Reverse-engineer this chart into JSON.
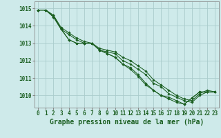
{
  "x": [
    0,
    1,
    2,
    3,
    4,
    5,
    6,
    7,
    8,
    9,
    10,
    11,
    12,
    13,
    14,
    15,
    16,
    17,
    18,
    19,
    20,
    21,
    22,
    23
  ],
  "lines": [
    [
      1014.9,
      1014.9,
      1014.6,
      1013.8,
      1013.5,
      1013.2,
      1013.0,
      1013.0,
      1012.6,
      1012.5,
      1012.4,
      1012.0,
      1011.8,
      1011.5,
      1011.2,
      1010.7,
      1010.5,
      1010.1,
      1009.9,
      1009.7,
      1009.6,
      1010.0,
      1010.2,
      1010.2
    ],
    [
      1014.9,
      1014.9,
      1014.6,
      1013.9,
      1013.6,
      1013.3,
      1013.1,
      1013.0,
      1012.7,
      1012.6,
      1012.5,
      1012.2,
      1012.0,
      1011.7,
      1011.4,
      1010.9,
      1010.6,
      1010.3,
      1010.0,
      1009.8,
      1009.7,
      1010.1,
      1010.3,
      1010.2
    ],
    [
      1014.9,
      1014.9,
      1014.5,
      1013.8,
      1013.2,
      1013.0,
      1013.0,
      1013.0,
      1012.6,
      1012.4,
      1012.2,
      1011.8,
      1011.5,
      1011.1,
      1010.6,
      1010.3,
      1010.0,
      1009.8,
      1009.6,
      1009.5,
      1009.85,
      1010.2,
      1010.2,
      1010.2
    ],
    [
      1014.9,
      1014.9,
      1014.5,
      1013.8,
      1013.2,
      1013.0,
      1013.0,
      1013.0,
      1012.6,
      1012.4,
      1012.2,
      1011.8,
      1011.6,
      1011.2,
      1010.7,
      1010.3,
      1010.0,
      1009.9,
      1009.7,
      1009.5,
      1009.85,
      1010.2,
      1010.2,
      1010.2
    ]
  ],
  "bg_color": "#ceeaea",
  "grid_color": "#aacccc",
  "line_color": "#1a5e20",
  "marker": "D",
  "marker_size": 1.8,
  "xlabel": "Graphe pression niveau de la mer (hPa)",
  "xlim": [
    -0.5,
    23.5
  ],
  "ylim": [
    1009.3,
    1015.4
  ],
  "yticks": [
    1010,
    1011,
    1012,
    1013,
    1014,
    1015
  ],
  "xticks": [
    0,
    1,
    2,
    3,
    4,
    5,
    6,
    7,
    8,
    9,
    10,
    11,
    12,
    13,
    14,
    15,
    16,
    17,
    18,
    19,
    20,
    21,
    22,
    23
  ],
  "tick_fontsize": 5.5,
  "xlabel_fontsize": 7,
  "tick_color": "#1a5e20",
  "axis_color": "#888888",
  "linewidth": 0.75
}
